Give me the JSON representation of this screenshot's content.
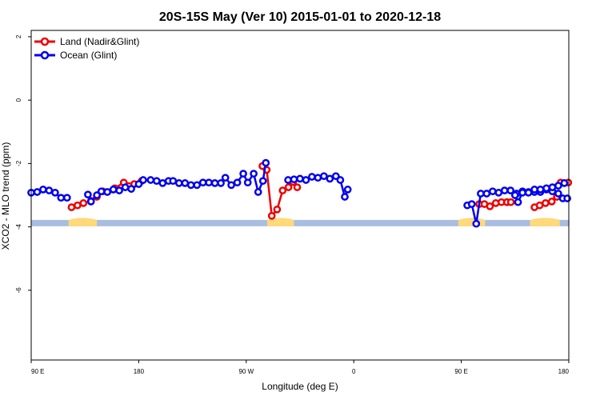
{
  "chart_data": {
    "type": "line",
    "title": "20S-15S May (Ver 10)   2015-01-01 to 2020-12-18",
    "xlabel": "Longitude (deg E)",
    "ylabel": "XCO2 - MLO trend (ppm)",
    "xlim": [
      90,
      450
    ],
    "ylim": [
      -8.2,
      2.2
    ],
    "x_ticks": [
      90,
      162,
      234,
      306,
      378,
      450
    ],
    "x_tick_labels": [
      "90 E",
      "180",
      "90 W",
      "0",
      "90 E",
      "180"
    ],
    "y_ticks": [
      2,
      0,
      -2,
      -4,
      -6
    ],
    "y_tick_labels": [
      "2",
      "0",
      "-2",
      "-4",
      "-6"
    ],
    "legend_position": "top-left",
    "colors": {
      "land": "#ee0000",
      "ocean": "#0000ee",
      "land_mask": "#ffd97a",
      "ocean_mask": "#a8bde0"
    },
    "series": [
      {
        "name": "Land (Nadir&Glint)",
        "color": "#ee0000",
        "segments": [
          [
            [
              117,
              -3.38
            ],
            [
              121,
              -3.32
            ],
            [
              125,
              -3.25
            ],
            [
              130,
              -3.18
            ],
            [
              134,
              -3.05
            ],
            [
              138,
              -2.88
            ],
            [
              146,
              -2.78
            ],
            [
              152,
              -2.6
            ],
            [
              159,
              -2.65
            ],
            [
              164,
              -2.55
            ]
          ],
          [
            [
              244.8,
              -2.08
            ],
            [
              247.7,
              -2.2
            ],
            [
              251.1,
              -3.65
            ],
            [
              254.7,
              -3.45
            ],
            [
              258.4,
              -2.85
            ],
            [
              262.3,
              -2.75
            ],
            [
              265.4,
              -2.58
            ],
            [
              268.1,
              -2.75
            ]
          ],
          [
            [
              390,
              -3.28
            ],
            [
              393.5,
              -3.28
            ],
            [
              397.2,
              -3.35
            ],
            [
              401.1,
              -3.25
            ],
            [
              404.9,
              -3.22
            ],
            [
              408.6,
              -3.22
            ]
          ],
          [
            [
              408.6,
              -3.22
            ],
            [
              411.2,
              -3.22
            ]
          ],
          [
            [
              427,
              -3.38
            ],
            [
              430.5,
              -3.32
            ],
            [
              434.4,
              -3.25
            ],
            [
              438.6,
              -3.2
            ],
            [
              442,
              -3.05
            ]
          ],
          [
            [
              444.6,
              -2.6
            ],
            [
              449.6,
              -2.6
            ]
          ]
        ]
      },
      {
        "name": "Ocean (Glint)",
        "color": "#0000ee",
        "segments": [
          [
            [
              90,
              -2.92
            ],
            [
              94,
              -2.9
            ],
            [
              98,
              -2.82
            ],
            [
              102,
              -2.85
            ],
            [
              106,
              -2.92
            ],
            [
              110,
              -3.08
            ],
            [
              114,
              -3.08
            ]
          ],
          [
            [
              128,
              -2.98
            ],
            [
              130,
              -3.2
            ],
            [
              134,
              -3.0
            ],
            [
              137,
              -2.88
            ],
            [
              141,
              -2.9
            ],
            [
              145,
              -2.82
            ],
            [
              149,
              -2.85
            ],
            [
              153,
              -2.75
            ],
            [
              157,
              -2.8
            ],
            [
              162,
              -2.65
            ],
            [
              165,
              -2.52
            ],
            [
              170,
              -2.52
            ],
            [
              174,
              -2.55
            ],
            [
              178,
              -2.62
            ],
            [
              182,
              -2.55
            ],
            [
              185,
              -2.55
            ],
            [
              189,
              -2.62
            ],
            [
              193,
              -2.62
            ],
            [
              197,
              -2.68
            ],
            [
              201,
              -2.68
            ],
            [
              205,
              -2.6
            ],
            [
              209,
              -2.6
            ],
            [
              213,
              -2.62
            ],
            [
              217,
              -2.62
            ],
            [
              220,
              -2.45
            ],
            [
              224,
              -2.68
            ],
            [
              228,
              -2.6
            ],
            [
              232,
              -2.32
            ],
            [
              235,
              -2.6
            ],
            [
              239,
              -2.32
            ],
            [
              242,
              -2.9
            ],
            [
              245.2,
              -2.55
            ],
            [
              247.1,
              -1.98
            ]
          ],
          [
            [
              262,
              -2.52
            ],
            [
              266,
              -2.5
            ],
            [
              270,
              -2.48
            ],
            [
              274,
              -2.52
            ],
            [
              278,
              -2.42
            ],
            [
              282,
              -2.45
            ],
            [
              286,
              -2.4
            ],
            [
              290,
              -2.48
            ],
            [
              294,
              -2.4
            ],
            [
              297,
              -2.52
            ],
            [
              300,
              -3.05
            ],
            [
              302,
              -2.82
            ]
          ],
          [
            [
              382,
              -3.32
            ],
            [
              385,
              -3.28
            ],
            [
              388,
              -3.9
            ],
            [
              391,
              -2.95
            ],
            [
              395,
              -2.95
            ],
            [
              399,
              -2.88
            ],
            [
              403,
              -2.92
            ],
            [
              407,
              -2.85
            ],
            [
              411,
              -2.85
            ],
            [
              415,
              -2.95
            ],
            [
              419,
              -2.88
            ],
            [
              423,
              -2.9
            ],
            [
              427,
              -2.9
            ],
            [
              431,
              -2.9
            ],
            [
              435,
              -2.82
            ],
            [
              439,
              -2.88
            ],
            [
              443,
              -2.95
            ],
            [
              446,
              -3.1
            ],
            [
              449,
              -3.1
            ]
          ],
          [
            [
              414,
              -3.0
            ],
            [
              416,
              -3.22
            ],
            [
              419,
              -2.92
            ],
            [
              423,
              -2.92
            ],
            [
              427,
              -2.82
            ],
            [
              431,
              -2.82
            ],
            [
              435,
              -2.78
            ],
            [
              439,
              -2.75
            ],
            [
              443,
              -2.7
            ],
            [
              447,
              -2.62
            ]
          ]
        ]
      }
    ],
    "land_mask_ranges": [
      [
        115,
        134
      ],
      [
        248,
        266
      ],
      [
        376,
        394
      ],
      [
        424,
        444
      ]
    ]
  }
}
